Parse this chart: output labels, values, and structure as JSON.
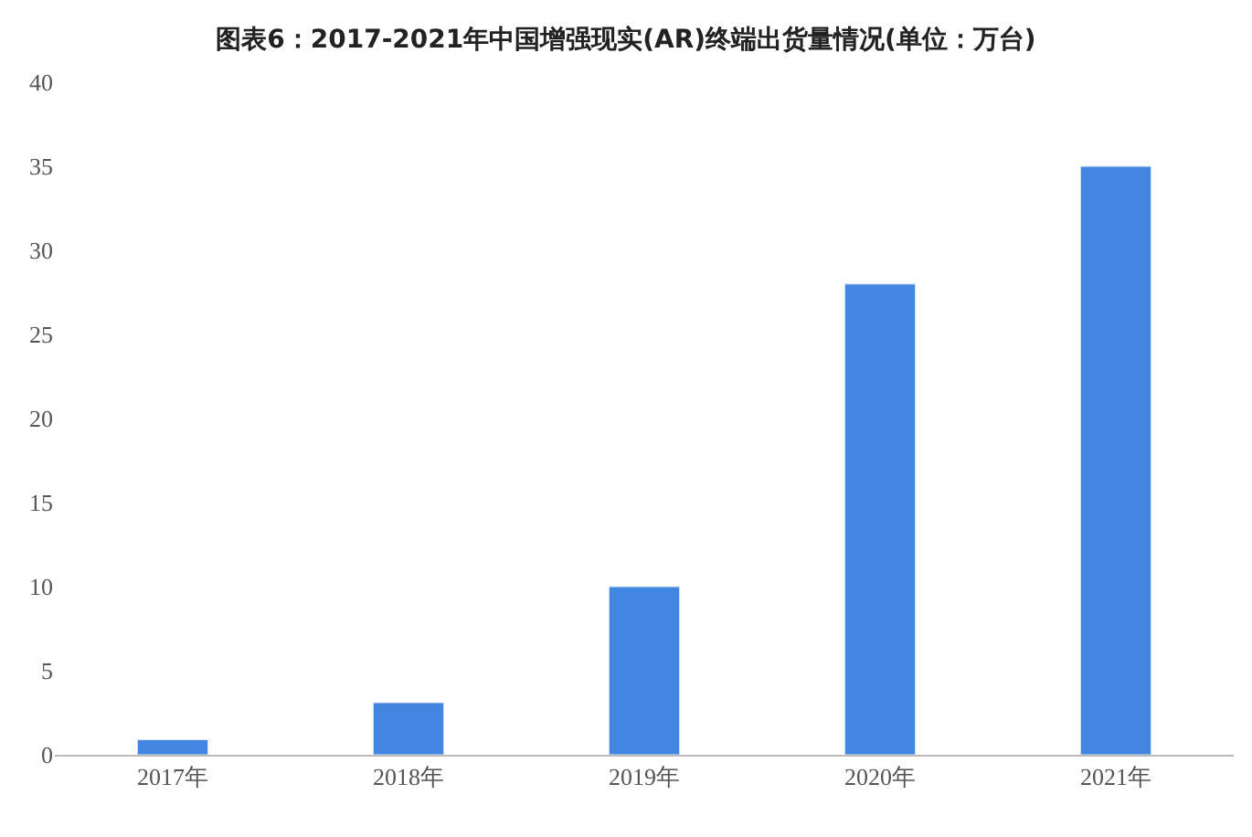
{
  "chart_data": {
    "type": "bar",
    "title": "图表6：2017-2021年中国增强现实(AR)终端出货量情况(单位：万台)",
    "categories": [
      "2017年",
      "2018年",
      "2019年",
      "2020年",
      "2021年"
    ],
    "values": [
      0.9,
      3.1,
      10,
      28,
      35
    ],
    "color": "#4286e2",
    "ylim": [
      0,
      40
    ],
    "yticks": [
      0,
      5,
      10,
      15,
      20,
      25,
      30,
      35,
      40
    ],
    "grid": false
  }
}
